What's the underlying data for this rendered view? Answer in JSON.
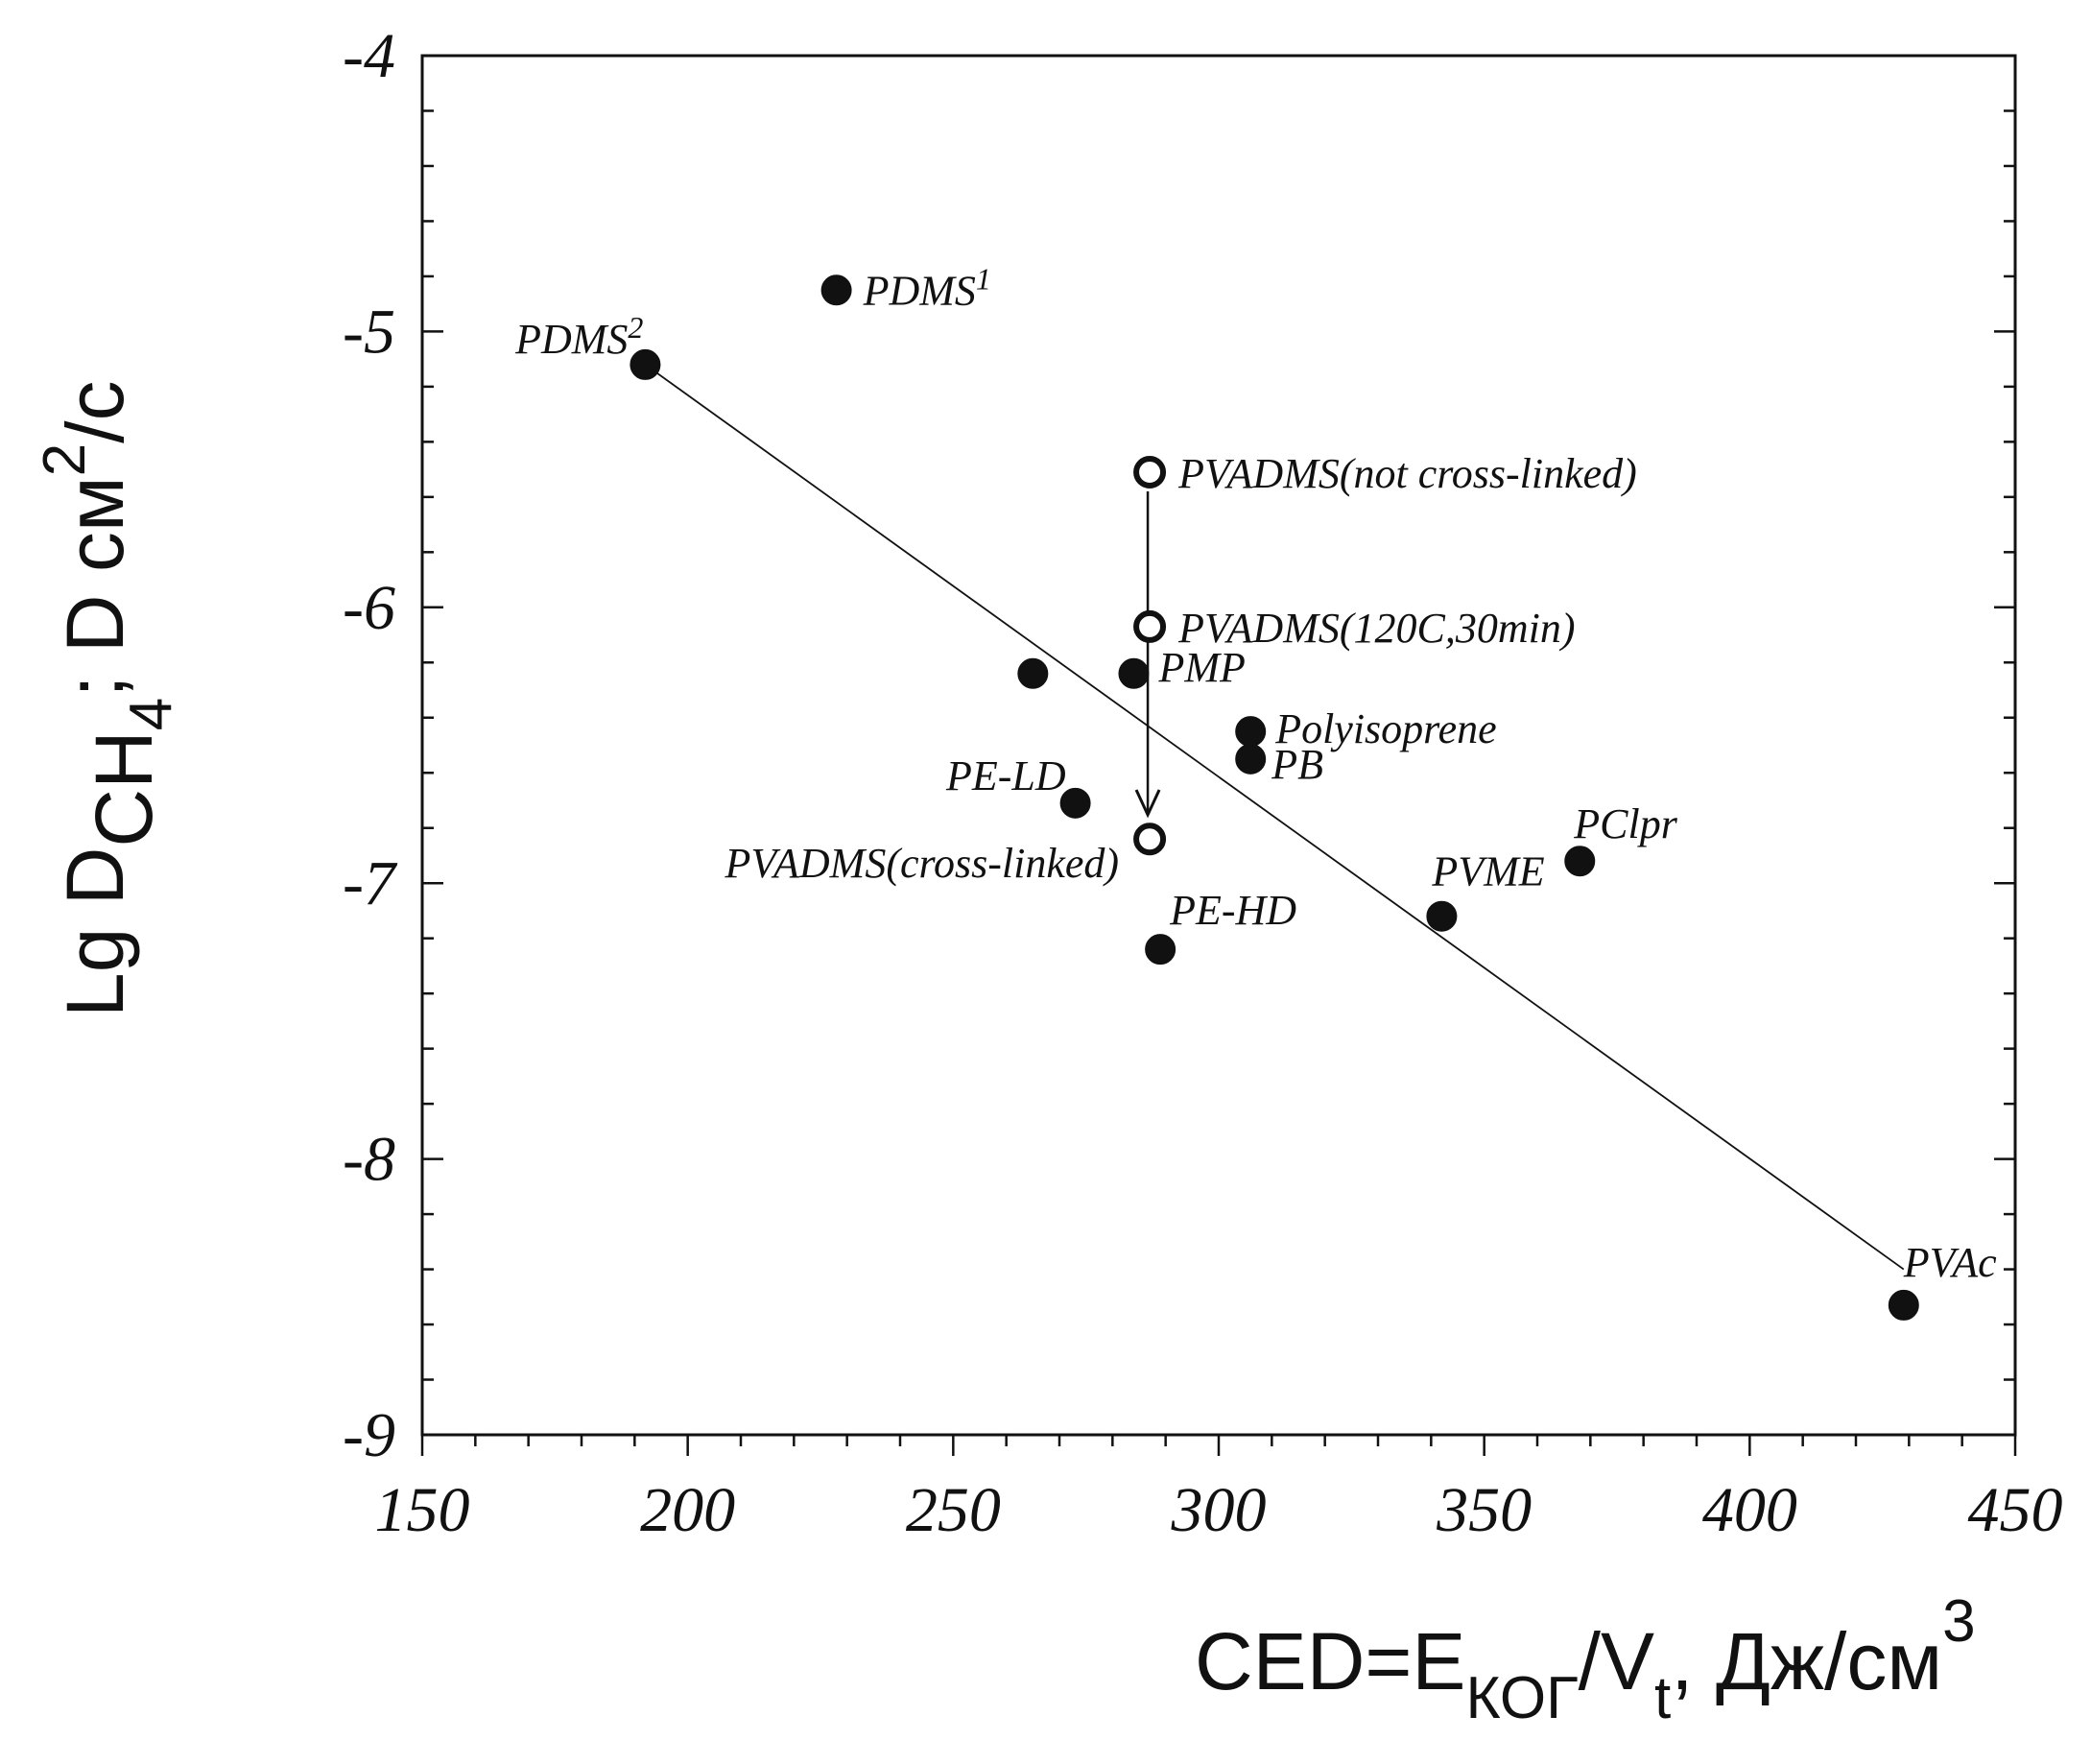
{
  "chart_data": {
    "type": "scatter",
    "xlim": [
      150,
      450
    ],
    "ylim": [
      -9,
      -4
    ],
    "x_ticks": [
      "150",
      "200",
      "250",
      "300",
      "350",
      "400",
      "450"
    ],
    "y_ticks": [
      "-4",
      "-5",
      "-6",
      "-7",
      "-8",
      "-9"
    ],
    "x_tick_values": [
      150,
      200,
      250,
      300,
      350,
      400,
      450
    ],
    "y_tick_values": [
      -4,
      -5,
      -6,
      -7,
      -8,
      -9
    ],
    "xlabel": {
      "main": "CED=E",
      "sub1": "КОГ",
      "mid": "/V",
      "sub2": "t",
      "tail": ", Дж/см",
      "sup": "3"
    },
    "ylabel": {
      "main": "Lg D",
      "sub": "CH",
      "subsub": "4",
      "mid": "; D см",
      "sup": "2",
      "tail": "/c"
    },
    "grid": false,
    "series": [
      {
        "marker": "filled-circle",
        "points": [
          {
            "x": 228,
            "y": -4.85,
            "label": "PDMS",
            "sup": "1"
          },
          {
            "x": 192,
            "y": -5.12,
            "label": "PDMS",
            "sup": "2"
          },
          {
            "x": 265,
            "y": -6.24,
            "label": ""
          },
          {
            "x": 284,
            "y": -6.24,
            "label": "PMP"
          },
          {
            "x": 306,
            "y": -6.45,
            "label": "Polyisoprene"
          },
          {
            "x": 306,
            "y": -6.55,
            "label": "PB"
          },
          {
            "x": 273,
            "y": -6.71,
            "label": "PE-LD"
          },
          {
            "x": 289,
            "y": -7.24,
            "label": "PE-HD"
          },
          {
            "x": 342,
            "y": -7.12,
            "label": "PVME"
          },
          {
            "x": 368,
            "y": -6.92,
            "label": "PClpr"
          },
          {
            "x": 429,
            "y": -8.53,
            "label": "PVAc"
          }
        ]
      },
      {
        "marker": "open-circle",
        "points": [
          {
            "x": 287,
            "y": -5.51,
            "label": "PVADMS(not cross-linked)"
          },
          {
            "x": 287,
            "y": -6.07,
            "label": "PVADMS(120C,30min)"
          },
          {
            "x": 287,
            "y": -6.84,
            "label": "PVADMS(cross-linked)"
          }
        ]
      }
    ],
    "trend_line": {
      "x": [
        192,
        429
      ],
      "y": [
        -5.12,
        -8.4
      ]
    },
    "arrow": {
      "x": 287,
      "y_from": -5.51,
      "y_to": -6.78
    }
  }
}
